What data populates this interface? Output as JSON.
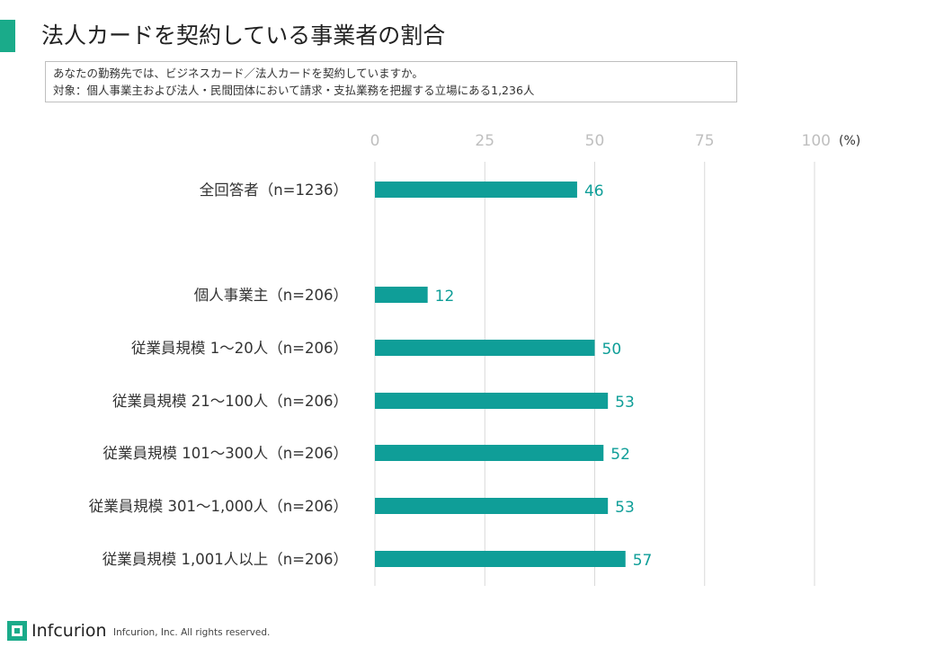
{
  "header": {
    "title": "法人カードを契約している事業者の割合"
  },
  "question": {
    "line1": "あなたの勤務先では、ビジネスカード／法人カードを契約していますか。",
    "line2": "対象：個人事業主および法人・民間団体において請求・支払業務を把握する立場にある1,236人"
  },
  "colors": {
    "accent": "#1aab8a",
    "bar": "#0f9e98",
    "value_label": "#0f9e98",
    "grid": "#d9d9d9",
    "tick": "#bfbfbf",
    "category_label": "#333333"
  },
  "chart_data": {
    "type": "bar",
    "orientation": "horizontal",
    "categories": [
      "全回答者（n=1236）",
      "個人事業主（n=206）",
      "従業員規模 1～20人（n=206）",
      "従業員規模 21～100人（n=206）",
      "従業員規模 101～300人（n=206）",
      "従業員規模 301～1,000人（n=206）",
      "従業員規模 1,001人以上（n=206）"
    ],
    "values": [
      46,
      12,
      50,
      53,
      52,
      53,
      57
    ],
    "xlim": [
      0,
      100
    ],
    "xticks": [
      0,
      25,
      50,
      75,
      100
    ],
    "unit_label": "(%)",
    "grid": true,
    "data_labels": true
  },
  "footer": {
    "brand": "Infcurion",
    "copyright": "Infcurion, Inc.  All rights reserved."
  }
}
